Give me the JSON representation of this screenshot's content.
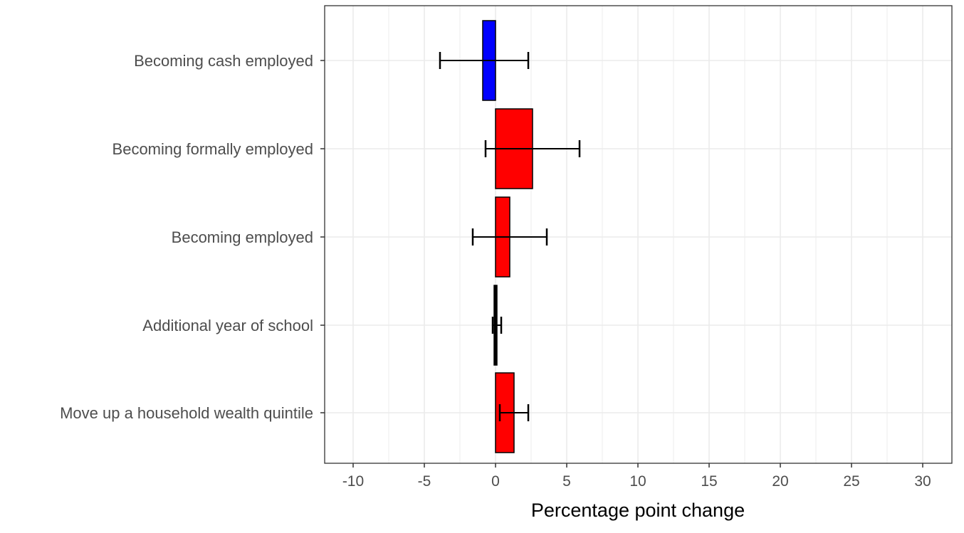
{
  "chart_data": {
    "type": "bar",
    "orientation": "horizontal",
    "title": "",
    "xlabel": "Percentage point change",
    "ylabel": "",
    "xlim": [
      -12,
      32
    ],
    "xticks": [
      -10,
      -5,
      0,
      5,
      10,
      15,
      20,
      25,
      30
    ],
    "grid": true,
    "legend": null,
    "categories": [
      "Becoming cash employed",
      "Becoming formally employed",
      "Becoming employed",
      "Additional year of school",
      "Move up a household wealth quintile"
    ],
    "values": [
      -0.9,
      2.6,
      1.0,
      0.1,
      1.3
    ],
    "error_low": [
      -3.9,
      -0.7,
      -1.6,
      -0.2,
      0.3
    ],
    "error_high": [
      2.3,
      5.9,
      3.6,
      0.4,
      2.3
    ],
    "colors": [
      "#0000ff",
      "#ff0000",
      "#ff0000",
      "#000000",
      "#ff0000"
    ]
  },
  "style": {
    "grid_color": "#ebebeb",
    "panel_border": "#333333",
    "axis_text": "#4d4d4d"
  }
}
